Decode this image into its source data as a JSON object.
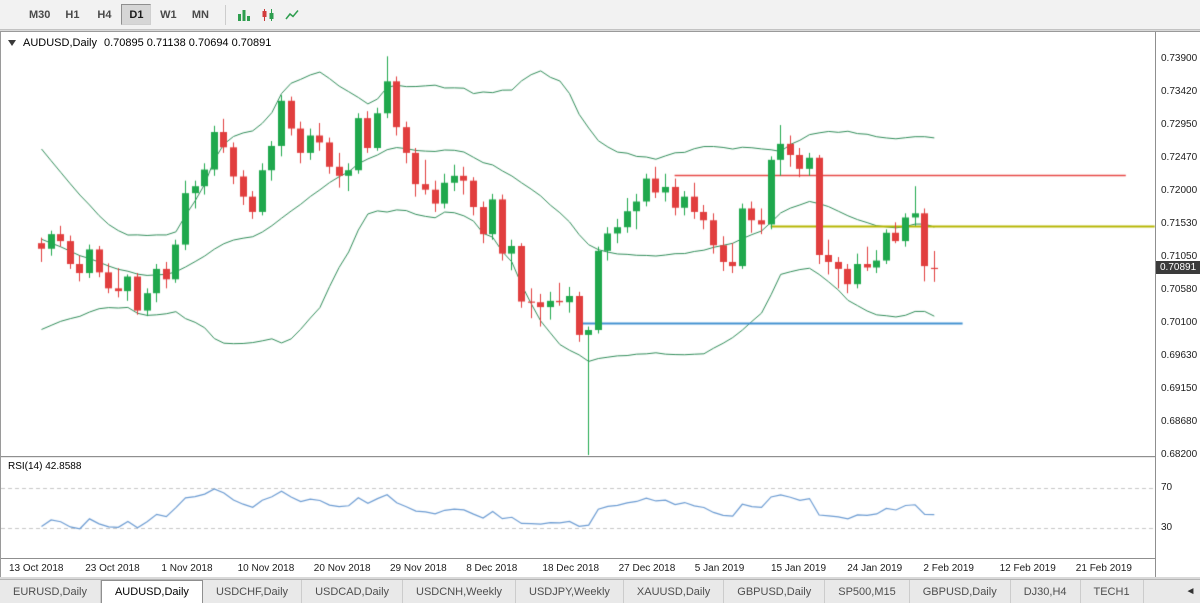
{
  "toolbar": {
    "timeframes": [
      {
        "label": "M30",
        "active": false
      },
      {
        "label": "H1",
        "active": false
      },
      {
        "label": "H4",
        "active": false
      },
      {
        "label": "D1",
        "active": true
      },
      {
        "label": "W1",
        "active": false
      },
      {
        "label": "MN",
        "active": false
      }
    ],
    "chart_type_icons": [
      "bar-chart-icon",
      "candlestick-icon",
      "line-chart-icon"
    ]
  },
  "chart": {
    "symbol": "AUDUSD,Daily",
    "ohlc_text": "0.70895 0.71138 0.70694 0.70891",
    "current_price": "0.70891",
    "price_axis_labels": [
      "0.73900",
      "0.73420",
      "0.72950",
      "0.72470",
      "0.72000",
      "0.71530",
      "0.71050",
      "0.70580",
      "0.70100",
      "0.69630",
      "0.69150",
      "0.68680",
      "0.68200"
    ],
    "date_axis_labels": [
      "13 Oct 2018",
      "23 Oct 2018",
      "1 Nov 2018",
      "10 Nov 2018",
      "20 Nov 2018",
      "29 Nov 2018",
      "8 Dec 2018",
      "18 Dec 2018",
      "27 Dec 2018",
      "5 Jan 2019",
      "15 Jan 2019",
      "24 Jan 2019",
      "2 Feb 2019",
      "12 Feb 2019",
      "21 Feb 2019"
    ]
  },
  "rsi": {
    "label": "RSI(14) 42.8588",
    "level_labels": [
      "70",
      "30"
    ],
    "levels": [
      70,
      30
    ],
    "current": 42.8588
  },
  "tabs": {
    "items": [
      {
        "label": "EURUSD,Daily",
        "active": false
      },
      {
        "label": "AUDUSD,Daily",
        "active": true
      },
      {
        "label": "USDCHF,Daily",
        "active": false
      },
      {
        "label": "USDCAD,Daily",
        "active": false
      },
      {
        "label": "USDCNH,Weekly",
        "active": false
      },
      {
        "label": "USDJPY,Weekly",
        "active": false
      },
      {
        "label": "XAUUSD,Daily",
        "active": false
      },
      {
        "label": "GBPUSD,Daily",
        "active": false
      },
      {
        "label": "SP500,M15",
        "active": false
      },
      {
        "label": "GBPUSD,Daily",
        "active": false
      },
      {
        "label": "DJ30,H4",
        "active": false
      },
      {
        "label": "TECH1",
        "active": false
      }
    ],
    "scroll_left_arrow": "◄"
  },
  "chart_data": {
    "type": "candlestick",
    "title": "AUDUSD Daily with Bollinger Bands(20,2) and RSI(14)",
    "price_range_visible": [
      0.682,
      0.739
    ],
    "bollinger": {
      "period": 20,
      "deviation": 2
    },
    "rsi_period": 14,
    "colors": {
      "up": "#1fa84d",
      "down": "#e13e3e",
      "bands": "#2e8b57",
      "rsi": "#6b9bd2"
    },
    "hlines": [
      {
        "name": "resistance-red-line",
        "price": 0.7223,
        "color": "#e74745",
        "width": 1.4,
        "from": 66,
        "to": 113
      },
      {
        "name": "level-yellow-line",
        "price": 0.715,
        "color": "#b5b500",
        "width": 2,
        "from": 76,
        "to": 116
      },
      {
        "name": "support-blue-line",
        "price": 0.701,
        "color": "#4090d0",
        "width": 2,
        "from": 56,
        "to": 96
      }
    ],
    "warmup_closes": [
      0.7248,
      0.7236,
      0.7222,
      0.721,
      0.7198,
      0.7188,
      0.7172,
      0.715,
      0.7132,
      0.711,
      0.7092,
      0.7072,
      0.7058,
      0.7048,
      0.706,
      0.7052,
      0.707,
      0.7088,
      0.7105
    ],
    "candles": [
      [
        0.7125,
        0.7133,
        0.7098,
        0.7117
      ],
      [
        0.7117,
        0.7143,
        0.7107,
        0.7138
      ],
      [
        0.7138,
        0.715,
        0.712,
        0.7128
      ],
      [
        0.7128,
        0.7136,
        0.7088,
        0.7095
      ],
      [
        0.7095,
        0.7107,
        0.707,
        0.7082
      ],
      [
        0.7082,
        0.7123,
        0.7075,
        0.7116
      ],
      [
        0.7116,
        0.7121,
        0.7076,
        0.7083
      ],
      [
        0.7083,
        0.7096,
        0.7053,
        0.706
      ],
      [
        0.706,
        0.7089,
        0.7047,
        0.7056
      ],
      [
        0.7056,
        0.708,
        0.7042,
        0.7077
      ],
      [
        0.7077,
        0.7082,
        0.7022,
        0.7028
      ],
      [
        0.7028,
        0.706,
        0.702,
        0.7053
      ],
      [
        0.7053,
        0.7095,
        0.704,
        0.7088
      ],
      [
        0.7088,
        0.7098,
        0.706,
        0.7073
      ],
      [
        0.7073,
        0.713,
        0.7068,
        0.7123
      ],
      [
        0.7123,
        0.7215,
        0.7115,
        0.7197
      ],
      [
        0.7197,
        0.7215,
        0.7175,
        0.7207
      ],
      [
        0.7207,
        0.724,
        0.7195,
        0.7231
      ],
      [
        0.7231,
        0.7294,
        0.7222,
        0.7285
      ],
      [
        0.7285,
        0.7304,
        0.7255,
        0.7263
      ],
      [
        0.7263,
        0.727,
        0.721,
        0.7221
      ],
      [
        0.7221,
        0.723,
        0.718,
        0.7192
      ],
      [
        0.7192,
        0.72,
        0.716,
        0.717
      ],
      [
        0.717,
        0.724,
        0.7165,
        0.723
      ],
      [
        0.723,
        0.7272,
        0.7215,
        0.7265
      ],
      [
        0.7265,
        0.7338,
        0.725,
        0.733
      ],
      [
        0.733,
        0.7336,
        0.728,
        0.729
      ],
      [
        0.729,
        0.73,
        0.724,
        0.7255
      ],
      [
        0.7255,
        0.729,
        0.7245,
        0.728
      ],
      [
        0.728,
        0.7298,
        0.7258,
        0.727
      ],
      [
        0.727,
        0.7277,
        0.7225,
        0.7235
      ],
      [
        0.7235,
        0.7255,
        0.7205,
        0.7222
      ],
      [
        0.7222,
        0.724,
        0.72,
        0.723
      ],
      [
        0.723,
        0.7312,
        0.7225,
        0.7305
      ],
      [
        0.7305,
        0.7315,
        0.7255,
        0.7262
      ],
      [
        0.7262,
        0.732,
        0.7258,
        0.7312
      ],
      [
        0.7312,
        0.7394,
        0.7305,
        0.7358
      ],
      [
        0.7358,
        0.7365,
        0.728,
        0.7292
      ],
      [
        0.7292,
        0.73,
        0.724,
        0.7255
      ],
      [
        0.7255,
        0.7262,
        0.7192,
        0.721
      ],
      [
        0.721,
        0.7245,
        0.7195,
        0.7202
      ],
      [
        0.7202,
        0.7215,
        0.717,
        0.7182
      ],
      [
        0.7182,
        0.7225,
        0.7175,
        0.7212
      ],
      [
        0.7212,
        0.7238,
        0.72,
        0.7222
      ],
      [
        0.7222,
        0.7235,
        0.7195,
        0.7215
      ],
      [
        0.7215,
        0.722,
        0.7165,
        0.7177
      ],
      [
        0.7177,
        0.7185,
        0.7125,
        0.7138
      ],
      [
        0.7138,
        0.7196,
        0.713,
        0.7188
      ],
      [
        0.7188,
        0.7195,
        0.71,
        0.711
      ],
      [
        0.711,
        0.713,
        0.7086,
        0.7121
      ],
      [
        0.7121,
        0.7125,
        0.7032,
        0.7041
      ],
      [
        0.7041,
        0.706,
        0.7017,
        0.704
      ],
      [
        0.704,
        0.7052,
        0.7005,
        0.7033
      ],
      [
        0.7033,
        0.7055,
        0.7015,
        0.7042
      ],
      [
        0.7042,
        0.7068,
        0.7035,
        0.704
      ],
      [
        0.704,
        0.7062,
        0.7025,
        0.7049
      ],
      [
        0.7049,
        0.7055,
        0.6983,
        0.6993
      ],
      [
        0.6993,
        0.7005,
        0.682,
        0.7
      ],
      [
        0.7,
        0.712,
        0.6995,
        0.7114
      ],
      [
        0.7114,
        0.7148,
        0.71,
        0.7139
      ],
      [
        0.7139,
        0.716,
        0.7125,
        0.7148
      ],
      [
        0.7148,
        0.719,
        0.714,
        0.7171
      ],
      [
        0.7171,
        0.7196,
        0.7145,
        0.7185
      ],
      [
        0.7185,
        0.7225,
        0.7178,
        0.7218
      ],
      [
        0.7218,
        0.7235,
        0.719,
        0.7198
      ],
      [
        0.7198,
        0.7225,
        0.7185,
        0.7206
      ],
      [
        0.7206,
        0.7218,
        0.7165,
        0.7176
      ],
      [
        0.7176,
        0.72,
        0.7165,
        0.7192
      ],
      [
        0.7192,
        0.7212,
        0.716,
        0.717
      ],
      [
        0.717,
        0.718,
        0.7145,
        0.7158
      ],
      [
        0.7158,
        0.7168,
        0.711,
        0.7122
      ],
      [
        0.7122,
        0.7135,
        0.7085,
        0.7098
      ],
      [
        0.7098,
        0.7125,
        0.7082,
        0.7092
      ],
      [
        0.7092,
        0.7182,
        0.7088,
        0.7175
      ],
      [
        0.7175,
        0.7185,
        0.714,
        0.7158
      ],
      [
        0.7158,
        0.7175,
        0.7138,
        0.7152
      ],
      [
        0.7152,
        0.725,
        0.7145,
        0.7245
      ],
      [
        0.7245,
        0.7295,
        0.7222,
        0.7268
      ],
      [
        0.7268,
        0.728,
        0.7235,
        0.7252
      ],
      [
        0.7252,
        0.7262,
        0.722,
        0.7232
      ],
      [
        0.7232,
        0.7255,
        0.7222,
        0.7248
      ],
      [
        0.7248,
        0.7252,
        0.7095,
        0.7108
      ],
      [
        0.7108,
        0.713,
        0.708,
        0.7098
      ],
      [
        0.7098,
        0.7105,
        0.706,
        0.7088
      ],
      [
        0.7088,
        0.7095,
        0.7053,
        0.7066
      ],
      [
        0.7066,
        0.711,
        0.706,
        0.7095
      ],
      [
        0.7095,
        0.712,
        0.7085,
        0.709
      ],
      [
        0.709,
        0.7115,
        0.7082,
        0.71
      ],
      [
        0.71,
        0.7145,
        0.7095,
        0.714
      ],
      [
        0.714,
        0.7155,
        0.7125,
        0.7128
      ],
      [
        0.7128,
        0.7168,
        0.712,
        0.7162
      ],
      [
        0.7162,
        0.7207,
        0.715,
        0.7168
      ],
      [
        0.7168,
        0.7175,
        0.707,
        0.7092
      ],
      [
        0.70895,
        0.71138,
        0.70694,
        0.70891
      ]
    ]
  }
}
